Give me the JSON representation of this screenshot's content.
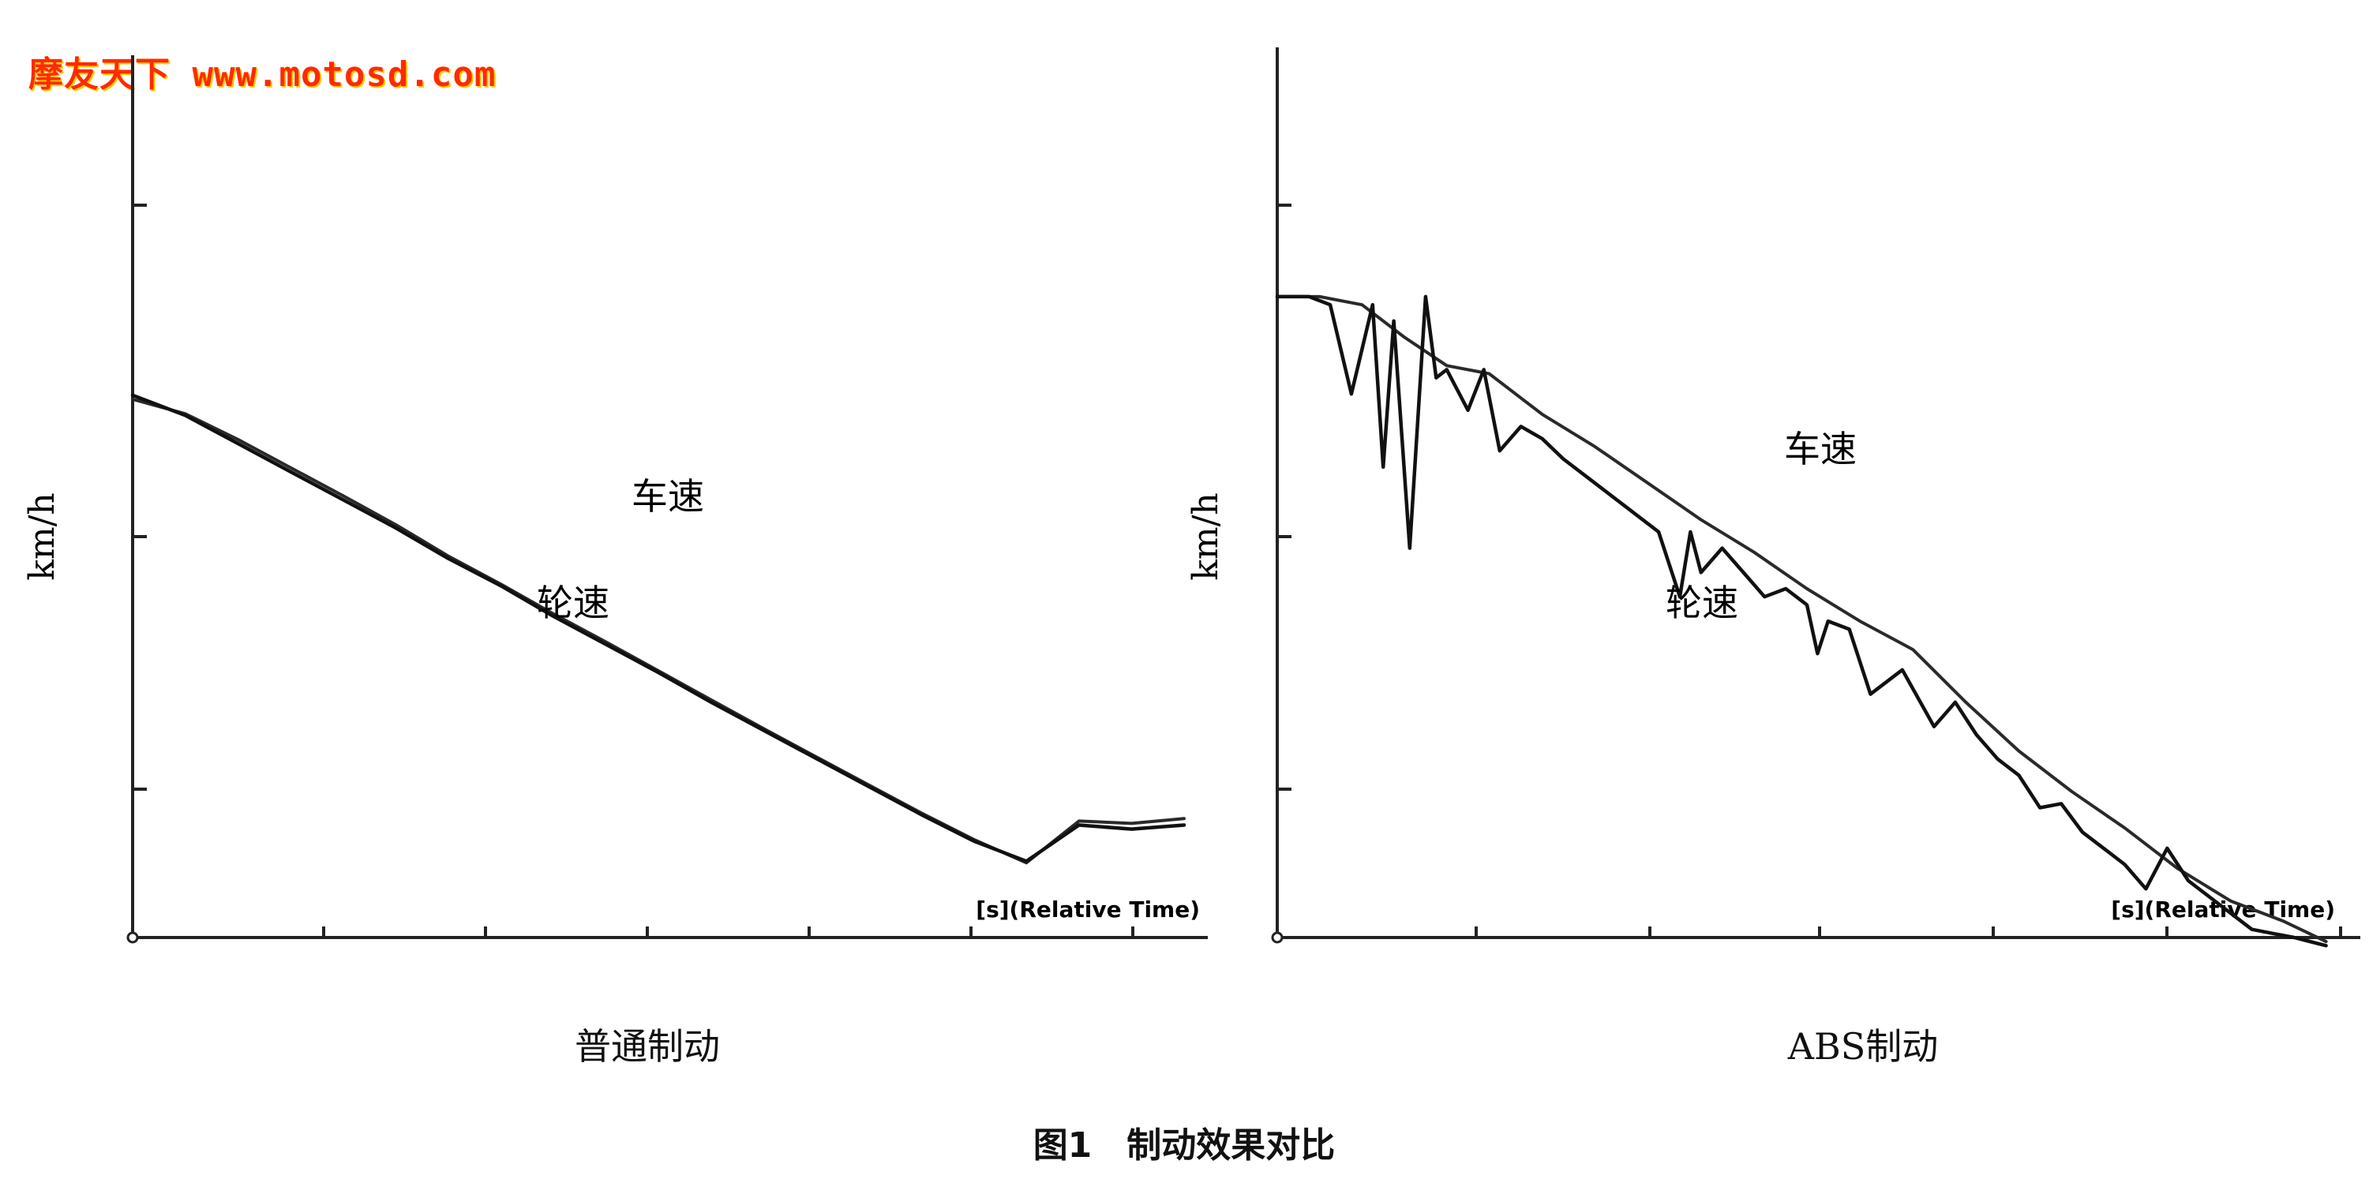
{
  "watermark": "摩友天下 www.motosd.com",
  "figure_title": "图1　制动效果对比",
  "chart_data": [
    {
      "type": "line",
      "caption": "普通制动",
      "ylabel": "km/h",
      "xlabel": "[s](Relative Time)",
      "xlim": [
        0,
        100
      ],
      "ylim": [
        0,
        100
      ],
      "annotations": [
        "车速",
        "轮速"
      ],
      "series": [
        {
          "name": "车速",
          "x": [
            0,
            5,
            10,
            15,
            20,
            25,
            30,
            35,
            40,
            45,
            50,
            55,
            60,
            65,
            70,
            75,
            80,
            85,
            90,
            95,
            100
          ],
          "y": [
            67,
            65.2,
            62,
            58.5,
            55,
            51.4,
            47.5,
            44,
            40.3,
            36.8,
            33.2,
            29.6,
            26,
            22.5,
            19,
            15.5,
            12.2,
            9.3,
            14.5,
            14.2,
            14.8
          ]
        },
        {
          "name": "轮速",
          "x": [
            0,
            5,
            10,
            15,
            20,
            25,
            30,
            35,
            40,
            45,
            50,
            55,
            60,
            65,
            70,
            75,
            80,
            85,
            90,
            95,
            100
          ],
          "y": [
            67.5,
            65,
            61.5,
            58,
            54.5,
            51,
            47.2,
            43.8,
            40,
            36.5,
            33,
            29.3,
            25.8,
            22.3,
            18.8,
            15.3,
            12,
            9.5,
            14,
            13.5,
            14
          ]
        }
      ]
    },
    {
      "type": "line",
      "caption": "ABS制动",
      "ylabel": "km/h",
      "xlabel": "[s](Relative Time)",
      "xlim": [
        0,
        100
      ],
      "ylim": [
        0,
        100
      ],
      "annotations": [
        "车速",
        "轮速"
      ],
      "series": [
        {
          "name": "车速",
          "x": [
            0,
            4,
            8,
            12,
            16,
            20,
            25,
            30,
            35,
            40,
            45,
            50,
            55,
            60,
            65,
            70,
            75,
            80,
            85,
            90,
            95,
            99
          ],
          "y": [
            79,
            79,
            78,
            74,
            70.5,
            69.5,
            64.5,
            60.5,
            56,
            51.5,
            47.5,
            43,
            39,
            35.5,
            29,
            23,
            18,
            13.5,
            8.5,
            4.5,
            2,
            -0.5
          ]
        },
        {
          "name": "轮速",
          "x": [
            0,
            3,
            5,
            7,
            9,
            10,
            11,
            12.5,
            14,
            15,
            16,
            18,
            19.5,
            21,
            23,
            25,
            27,
            30,
            33,
            36,
            38,
            39,
            40,
            42,
            44,
            46,
            48,
            50,
            51,
            52,
            54,
            56,
            59,
            62,
            64,
            66,
            68,
            70,
            72,
            74,
            76,
            78,
            80,
            82,
            84,
            86,
            88,
            90,
            92,
            94,
            96,
            99
          ],
          "y": [
            79,
            79,
            78,
            67,
            78,
            58,
            76,
            48,
            79,
            69,
            70,
            65,
            70,
            60,
            63,
            61.5,
            59,
            56,
            53,
            50,
            42,
            50,
            45,
            48,
            45,
            42,
            43,
            41,
            35,
            39,
            38,
            30,
            33,
            26,
            29,
            25,
            22,
            20,
            16,
            16.5,
            13,
            11,
            9,
            6,
            11,
            7,
            5,
            3,
            1,
            0.5,
            0,
            -1
          ]
        }
      ]
    }
  ]
}
